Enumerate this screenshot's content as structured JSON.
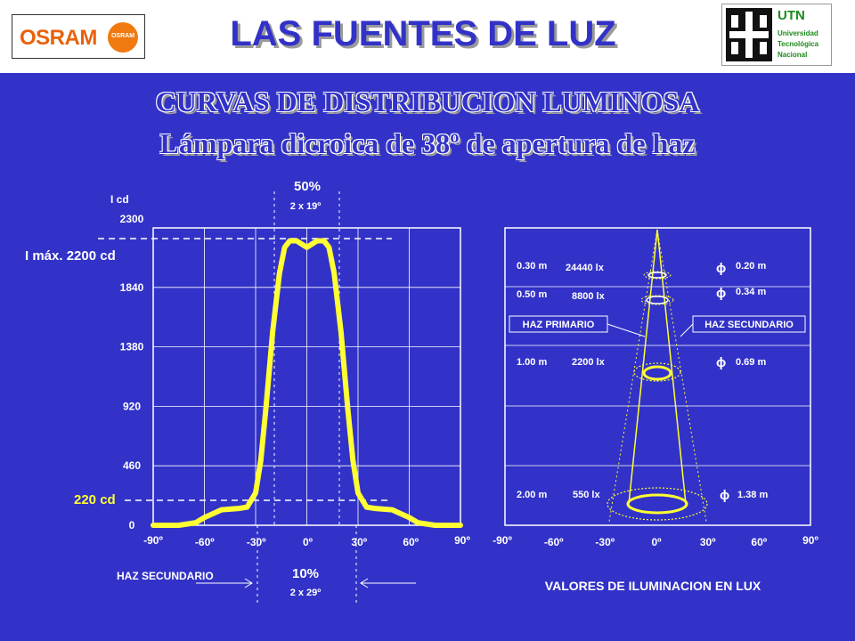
{
  "header": {
    "title": "LAS FUENTES DE LUZ",
    "osram_logo_text": "OSRAM",
    "osram_bulb_text": "OSRAM",
    "utn_name": "UTN",
    "utn_line1": "Universidad",
    "utn_line2": "Tecnológica",
    "utn_line3": "Nacional"
  },
  "subtitle1": "CURVAS DE DISTRIBUCION LUMINOSA",
  "subtitle2": "Lámpara dicroica de 38º de apertura de haz",
  "left_chart": {
    "ylabel": "I cd",
    "y_ticks": [
      "2300",
      "1840",
      "1380",
      "920",
      "460",
      "0"
    ],
    "x_ticks": [
      "-90º",
      "-60º",
      "-30º",
      "0º",
      "30º",
      "60º",
      "90º"
    ],
    "imax_label": "I máx. 2200 cd",
    "i220_label": "220 cd",
    "pct50": "50%",
    "angle50": "2 x 19º",
    "pct10": "10%",
    "angle10": "2 x 29º",
    "haz_secundario": "HAZ SECUNDARIO",
    "line_color": "#ffff33"
  },
  "right_chart": {
    "x_ticks": [
      "-90º",
      "-60º",
      "-30º",
      "0º",
      "30º",
      "60º",
      "90º"
    ],
    "rows": [
      {
        "dist": "0.30 m",
        "lux": "24440 lx",
        "diam_symbol": "ϕ",
        "diam": "0.20 m"
      },
      {
        "dist": "0.50 m",
        "lux": "8800 lx",
        "diam_symbol": "ϕ",
        "diam": "0.34 m"
      },
      {
        "dist": "1.00 m",
        "lux": "2200 lx",
        "diam_symbol": "ϕ",
        "diam": "0.69 m"
      },
      {
        "dist": "2.00 m",
        "lux": "550 lx",
        "diam_symbol": "ϕ",
        "diam": "1.38 m"
      }
    ],
    "haz_primario": "HAZ PRIMARIO",
    "haz_secundario": "HAZ SECUNDARIO",
    "caption": "VALORES DE ILUMINACION EN LUX"
  },
  "chart_data": {
    "type": "line",
    "xlabel": "",
    "ylabel": "I cd",
    "xlim": [
      -90,
      90
    ],
    "ylim": [
      0,
      2300
    ],
    "x": [
      -90,
      -75,
      -65,
      -60,
      -50,
      -40,
      -35,
      -30,
      -27,
      -24,
      -20,
      -16,
      -13,
      -10,
      -6,
      0,
      6,
      10,
      13,
      16,
      20,
      24,
      27,
      30,
      35,
      40,
      50,
      60,
      65,
      75,
      90
    ],
    "series": [
      {
        "values": [
          0,
          0,
          20,
          60,
          120,
          130,
          140,
          250,
          500,
          900,
          1500,
          1950,
          2150,
          2200,
          2200,
          2150,
          2200,
          2200,
          2150,
          1950,
          1500,
          900,
          500,
          250,
          140,
          130,
          120,
          60,
          20,
          0,
          0
        ]
      }
    ]
  }
}
